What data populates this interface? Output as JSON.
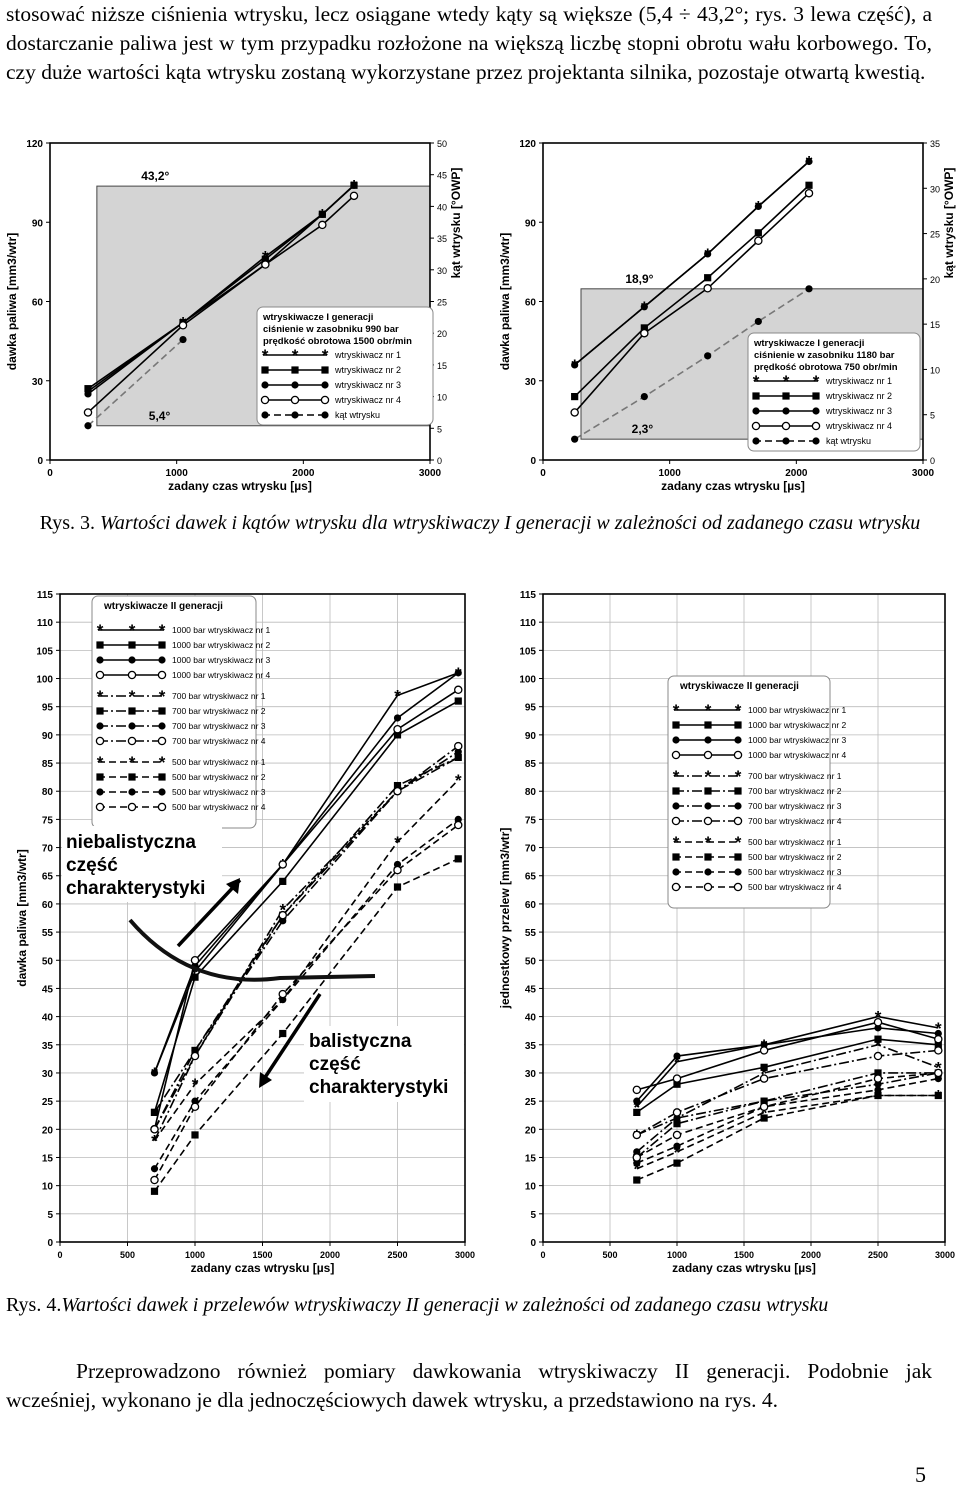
{
  "text": {
    "paragraph1": "stosować niższe ciśnienia wtrysku, lecz osiągane wtedy kąty są większe (5,4 ÷ 43,2°; rys. 3 lewa część), a dostarczanie paliwa jest w tym przypadku rozłożone na większą liczbę stopni obrotu wału korbowego. To, czy duże wartości kąta wtrysku zostaną wykorzystane przez projektanta silnika, pozostaje otwartą kwestią.",
    "caption3_label": "Rys. 3.",
    "caption3_text": "Wartości dawek i kątów wtrysku dla wtryskiwaczy I generacji w zależności od zadanego czasu wtrysku",
    "caption4_label": "Rys. 4.",
    "caption4_text": "Wartości dawek i przelewów wtryskiwaczy II generacji w zależności od zadanego czasu wtrysku",
    "paragraph2": "Przeprowadzono również pomiary dawkowania wtryskiwaczy II generacji. Podobnie jak wcześniej, wykonano je dla jednoczęściowych dawek wtrysku, a przedstawiono na rys. 4.",
    "page_number": "5"
  },
  "chart_data": [
    {
      "id": "fig3_left",
      "type": "line",
      "xlabel": "zadany czas wtrysku [µs]",
      "ylabel": "dawka paliwa [mm3/wtr]",
      "y2label": "kąt wtrysku [°OWP]",
      "xlim": [
        0,
        3000
      ],
      "ylim": [
        0,
        120
      ],
      "y2lim": [
        0,
        50
      ],
      "xticks": [
        0,
        1000,
        2000,
        3000
      ],
      "yticks": [
        0,
        30,
        60,
        90,
        120
      ],
      "y2ticks": [
        0,
        5,
        10,
        15,
        20,
        25,
        30,
        35,
        40,
        45,
        50
      ],
      "shaded_angle_range": [
        5.4,
        43.2
      ],
      "annotations": [
        "43,2°",
        "5,4°"
      ],
      "legend_title": [
        "wtryskiwacze I generacji",
        "ciśnienie w zasobniku 990 bar",
        "prędkość obrotowa 1500 obr/min"
      ],
      "series": [
        {
          "name": "wtryskiwacz nr 1",
          "marker": "star",
          "dash": "solid",
          "x": [
            300,
            1050,
            1700,
            2150,
            2400
          ],
          "y": [
            26,
            52,
            77,
            93,
            104
          ]
        },
        {
          "name": "wtryskiwacz nr 2",
          "marker": "square",
          "dash": "solid",
          "x": [
            300,
            1050,
            1700,
            2150,
            2400
          ],
          "y": [
            27,
            52,
            76,
            93,
            104
          ]
        },
        {
          "name": "wtryskiwacz nr 3",
          "marker": "dot",
          "dash": "solid",
          "x": [
            300,
            1050,
            1700,
            2150,
            2400
          ],
          "y": [
            25,
            52,
            74,
            93,
            104
          ]
        },
        {
          "name": "wtryskiwacz nr 4",
          "marker": "circle",
          "dash": "solid",
          "x": [
            300,
            1050,
            1700,
            2150,
            2400
          ],
          "y": [
            18,
            51,
            74,
            89,
            100
          ]
        },
        {
          "name": "kąt wtrysku",
          "marker": "dot",
          "dash": "dashed",
          "axis": "y2",
          "x": [
            300,
            1050
          ],
          "y": [
            5.4,
            19
          ]
        }
      ]
    },
    {
      "id": "fig3_right",
      "type": "line",
      "xlabel": "zadany czas wtrysku [µs]",
      "ylabel": "dawka paliwa [mm3/wtr]",
      "y2label": "kąt wtrysku [°OWP]",
      "xlim": [
        0,
        3000
      ],
      "ylim": [
        0,
        120
      ],
      "y2lim": [
        0,
        35
      ],
      "xticks": [
        0,
        1000,
        2000,
        3000
      ],
      "yticks": [
        0,
        30,
        60,
        90,
        120
      ],
      "y2ticks": [
        0,
        5,
        10,
        15,
        20,
        25,
        30,
        35
      ],
      "shaded_angle_range": [
        2.3,
        18.9
      ],
      "annotations": [
        "18,9°",
        "2,3°"
      ],
      "legend_title": [
        "wtryskiwacze I generacji",
        "ciśnienie w zasobniku 1180 bar",
        "prędkość obrotowa 750 obr/min"
      ],
      "series": [
        {
          "name": "wtryskiwacz nr 1",
          "marker": "star",
          "dash": "solid",
          "x": [
            250,
            800,
            1300,
            1700,
            2100
          ],
          "y": [
            36,
            58,
            78,
            96,
            113
          ]
        },
        {
          "name": "wtryskiwacz nr 2",
          "marker": "square",
          "dash": "solid",
          "x": [
            250,
            800,
            1300,
            1700,
            2100
          ],
          "y": [
            24,
            50,
            69,
            86,
            104
          ]
        },
        {
          "name": "wtryskiwacz nr 3",
          "marker": "dot",
          "dash": "solid",
          "x": [
            250,
            800,
            1300,
            1700,
            2100
          ],
          "y": [
            36,
            58,
            78,
            96,
            113
          ]
        },
        {
          "name": "wtryskiwacz nr 4",
          "marker": "circle",
          "dash": "solid",
          "x": [
            250,
            800,
            1300,
            1700,
            2100
          ],
          "y": [
            18,
            48,
            65,
            83,
            101
          ]
        },
        {
          "name": "kąt wtrysku",
          "marker": "dot",
          "dash": "dashed",
          "axis": "y2",
          "x": [
            250,
            800,
            1300,
            1700,
            2100
          ],
          "y": [
            2.3,
            7,
            11.5,
            15.3,
            18.9
          ]
        }
      ]
    },
    {
      "id": "fig4_left",
      "type": "line",
      "xlabel": "zadany czas wtrysku [µs]",
      "ylabel": "dawka paliwa [mm3/wtr]",
      "xlim": [
        0,
        3000
      ],
      "ylim": [
        0,
        115
      ],
      "xticks": [
        0,
        500,
        1000,
        1500,
        2000,
        2500,
        3000
      ],
      "yticks": [
        0,
        5,
        10,
        15,
        20,
        25,
        30,
        35,
        40,
        45,
        50,
        55,
        60,
        65,
        70,
        75,
        80,
        85,
        90,
        95,
        100,
        105,
        110,
        115
      ],
      "legend_title": "wtryskiwacze II generacji",
      "annotations": [
        "niebalistyczna część charakterystyki",
        "balistyczna część charakterystyki"
      ],
      "series": [
        {
          "name": "1000 bar wtryskiwacz nr 1",
          "marker": "star",
          "dash": "solid",
          "x": [
            700,
            1000,
            1650,
            2500,
            2950
          ],
          "y": [
            30,
            48,
            67,
            97,
            101
          ]
        },
        {
          "name": "1000 bar wtryskiwacz nr 2",
          "marker": "square",
          "dash": "solid",
          "x": [
            700,
            1000,
            1650,
            2500,
            2950
          ],
          "y": [
            23,
            47,
            64,
            90,
            96
          ]
        },
        {
          "name": "1000 bar wtryskiwacz nr 3",
          "marker": "dot",
          "dash": "solid",
          "x": [
            700,
            1000,
            1650,
            2500,
            2950
          ],
          "y": [
            30,
            49,
            67,
            93,
            101
          ]
        },
        {
          "name": "1000 bar wtryskiwacz nr 4",
          "marker": "circle",
          "dash": "solid",
          "x": [
            700,
            1000,
            1650,
            2500,
            2950
          ],
          "y": [
            20,
            50,
            67,
            91,
            98
          ]
        },
        {
          "name": "700 bar wtryskiwacz nr 1",
          "marker": "star",
          "dash": "dashdot",
          "x": [
            700,
            1000,
            1650,
            2500,
            2950
          ],
          "y": [
            18,
            33,
            59,
            80,
            86
          ]
        },
        {
          "name": "700 bar wtryskiwacz nr 2",
          "marker": "square",
          "dash": "dashdot",
          "x": [
            700,
            1000,
            1650,
            2500,
            2950
          ],
          "y": [
            23,
            34,
            58,
            81,
            86
          ]
        },
        {
          "name": "700 bar wtryskiwacz nr 3",
          "marker": "dot",
          "dash": "dashdot",
          "x": [
            700,
            1000,
            1650,
            2500,
            2950
          ],
          "y": [
            20,
            34,
            57,
            80,
            87
          ]
        },
        {
          "name": "700 bar wtryskiwacz nr 4",
          "marker": "circle",
          "dash": "dashdot",
          "x": [
            700,
            1000,
            1650,
            2500,
            2950
          ],
          "y": [
            20,
            33,
            58,
            80,
            88
          ]
        },
        {
          "name": "500 bar wtryskiwacz nr 1",
          "marker": "star",
          "dash": "dashed",
          "x": [
            700,
            1000,
            1650,
            2500,
            2950
          ],
          "y": [
            18,
            28,
            43,
            71,
            82
          ]
        },
        {
          "name": "500 bar wtryskiwacz nr 2",
          "marker": "square",
          "dash": "dashed",
          "x": [
            700,
            1000,
            1650,
            2500,
            2950
          ],
          "y": [
            9,
            19,
            37,
            63,
            68
          ]
        },
        {
          "name": "500 bar wtryskiwacz nr 3",
          "marker": "dot",
          "dash": "dashed",
          "x": [
            700,
            1000,
            1650,
            2500,
            2950
          ],
          "y": [
            13,
            25,
            43,
            67,
            75
          ]
        },
        {
          "name": "500 bar wtryskiwacz nr 4",
          "marker": "circle",
          "dash": "dashed",
          "x": [
            700,
            1000,
            1650,
            2500,
            2950
          ],
          "y": [
            11,
            24,
            44,
            66,
            74
          ]
        }
      ]
    },
    {
      "id": "fig4_right",
      "type": "line",
      "xlabel": "zadany czas wtrysku [µs]",
      "ylabel": "jednostkowy przelew [mm3/wtr]",
      "xlim": [
        0,
        3000
      ],
      "ylim": [
        0,
        115
      ],
      "xticks": [
        0,
        500,
        1000,
        1500,
        2000,
        2500,
        3000
      ],
      "yticks": [
        0,
        5,
        10,
        15,
        20,
        25,
        30,
        35,
        40,
        45,
        50,
        55,
        60,
        65,
        70,
        75,
        80,
        85,
        90,
        95,
        100,
        105,
        110,
        115
      ],
      "legend_title": "wtryskiwacze II generacji",
      "series": [
        {
          "name": "1000 bar wtryskiwacz nr 1",
          "marker": "star",
          "dash": "solid",
          "x": [
            700,
            1000,
            1650,
            2500,
            2950
          ],
          "y": [
            24,
            32,
            35,
            40,
            38
          ]
        },
        {
          "name": "1000 bar wtryskiwacz nr 2",
          "marker": "square",
          "dash": "solid",
          "x": [
            700,
            1000,
            1650,
            2500,
            2950
          ],
          "y": [
            23,
            28,
            31,
            36,
            35
          ]
        },
        {
          "name": "1000 bar wtryskiwacz nr 3",
          "marker": "dot",
          "dash": "solid",
          "x": [
            700,
            1000,
            1650,
            2500,
            2950
          ],
          "y": [
            25,
            33,
            35,
            38,
            37
          ]
        },
        {
          "name": "1000 bar wtryskiwacz nr 4",
          "marker": "circle",
          "dash": "solid",
          "x": [
            700,
            1000,
            1650,
            2500,
            2950
          ],
          "y": [
            27,
            29,
            34,
            39,
            36
          ]
        },
        {
          "name": "700 bar wtryskiwacz nr 1",
          "marker": "star",
          "dash": "dashdot",
          "x": [
            700,
            1000,
            1650,
            2500,
            2950
          ],
          "y": [
            19,
            22,
            30,
            35,
            31
          ]
        },
        {
          "name": "700 bar wtryskiwacz nr 2",
          "marker": "square",
          "dash": "dashdot",
          "x": [
            700,
            1000,
            1650,
            2500,
            2950
          ],
          "y": [
            15,
            21,
            25,
            30,
            30
          ]
        },
        {
          "name": "700 bar wtryskiwacz nr 3",
          "marker": "dot",
          "dash": "dashdot",
          "x": [
            700,
            1000,
            1650,
            2500,
            2950
          ],
          "y": [
            16,
            22,
            25,
            28,
            30
          ]
        },
        {
          "name": "700 bar wtryskiwacz nr 4",
          "marker": "circle",
          "dash": "dashdot",
          "x": [
            700,
            1000,
            1650,
            2500,
            2950
          ],
          "y": [
            19,
            23,
            29,
            33,
            34
          ]
        },
        {
          "name": "500 bar wtryskiwacz nr 1",
          "marker": "star",
          "dash": "dashed",
          "x": [
            700,
            1000,
            1650,
            2500,
            2950
          ],
          "y": [
            13,
            16,
            23,
            26,
            26
          ]
        },
        {
          "name": "500 bar wtryskiwacz nr 2",
          "marker": "square",
          "dash": "dashed",
          "x": [
            700,
            1000,
            1650,
            2500,
            2950
          ],
          "y": [
            11,
            14,
            22,
            26,
            26
          ]
        },
        {
          "name": "500 bar wtryskiwacz nr 3",
          "marker": "dot",
          "dash": "dashed",
          "x": [
            700,
            1000,
            1650,
            2500,
            2950
          ],
          "y": [
            14,
            17,
            24,
            27,
            29
          ]
        },
        {
          "name": "500 bar wtryskiwacz nr 4",
          "marker": "circle",
          "dash": "dashed",
          "x": [
            700,
            1000,
            1650,
            2500,
            2950
          ],
          "y": [
            15,
            19,
            24,
            29,
            30
          ]
        }
      ]
    }
  ]
}
